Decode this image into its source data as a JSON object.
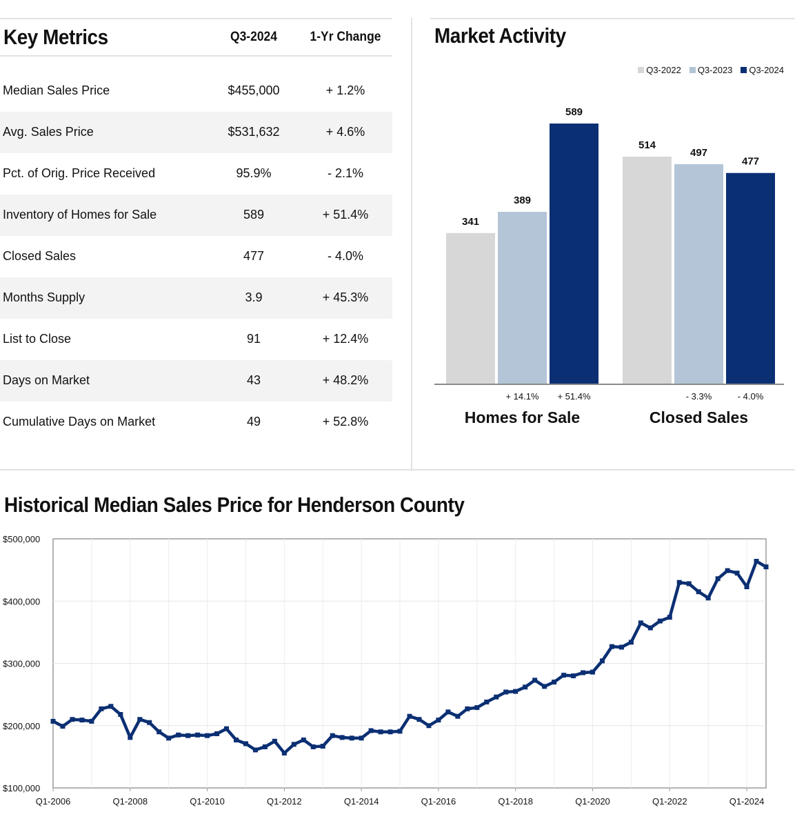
{
  "key_metrics": {
    "title": "Key Metrics",
    "col_period": "Q3-2024",
    "col_change": "1-Yr Change",
    "rows": [
      {
        "label": "Median Sales Price",
        "value": "$455,000",
        "change": "+ 1.2%"
      },
      {
        "label": "Avg. Sales Price",
        "value": "$531,632",
        "change": "+ 4.6%"
      },
      {
        "label": "Pct. of Orig. Price Received",
        "value": "95.9%",
        "change": "- 2.1%"
      },
      {
        "label": "Inventory of Homes for Sale",
        "value": "589",
        "change": "+ 51.4%"
      },
      {
        "label": "Closed Sales",
        "value": "477",
        "change": "- 4.0%"
      },
      {
        "label": "Months Supply",
        "value": "3.9",
        "change": "+ 45.3%"
      },
      {
        "label": "List to Close",
        "value": "91",
        "change": "+ 12.4%"
      },
      {
        "label": "Days on Market",
        "value": "43",
        "change": "+ 48.2%"
      },
      {
        "label": "Cumulative Days on Market",
        "value": "49",
        "change": "+ 52.8%"
      }
    ]
  },
  "market_activity": {
    "title": "Market Activity"
  },
  "historical": {
    "title": "Historical Median Sales Price for Henderson County"
  },
  "colors": {
    "q3_2022": "#d7d7d7",
    "q3_2023": "#b3c5d6",
    "q3_2024": "#0b2f73",
    "line": "#0b2f73"
  },
  "chart_data": [
    {
      "type": "bar",
      "categories": [
        "Homes for Sale",
        "Closed Sales"
      ],
      "series": [
        {
          "name": "Q3-2022",
          "values": [
            341,
            514
          ]
        },
        {
          "name": "Q3-2023",
          "values": [
            389,
            497
          ]
        },
        {
          "name": "Q3-2024",
          "values": [
            589,
            477
          ]
        }
      ],
      "change_labels": [
        [
          "",
          "+ 14.1%",
          "+ 51.4%"
        ],
        [
          "",
          "- 3.3%",
          "- 4.0%"
        ]
      ],
      "ylim": [
        0,
        650
      ],
      "legend": "top-right",
      "grid": false
    },
    {
      "type": "line",
      "title": "Historical Median Sales Price for Henderson County",
      "x_tick_labels": [
        "Q1-2006",
        "Q1-2008",
        "Q1-2010",
        "Q1-2012",
        "Q1-2014",
        "Q1-2016",
        "Q1-2018",
        "Q1-2020",
        "Q1-2022",
        "Q1-2024"
      ],
      "y_tick_labels": [
        "$100,000",
        "$200,000",
        "$300,000",
        "$400,000",
        "$500,000"
      ],
      "ylim": [
        100000,
        500000
      ],
      "x_start": "Q1-2006",
      "x_end": "Q3-2024",
      "grid": true,
      "values": [
        207000,
        199000,
        210000,
        209000,
        207000,
        227000,
        231000,
        218000,
        181000,
        210000,
        205000,
        190000,
        180000,
        185000,
        184000,
        185000,
        184000,
        187000,
        195000,
        177000,
        171000,
        161000,
        166000,
        175000,
        156000,
        170000,
        177000,
        166000,
        167000,
        184000,
        181000,
        180000,
        180000,
        192000,
        190000,
        190000,
        191000,
        215000,
        210000,
        200000,
        209000,
        222000,
        215000,
        227000,
        229000,
        238000,
        246000,
        254000,
        255000,
        262000,
        273000,
        263000,
        270000,
        281000,
        280000,
        285000,
        286000,
        304000,
        327000,
        326000,
        334000,
        365000,
        357000,
        368000,
        374000,
        430000,
        428000,
        415000,
        405000,
        436000,
        449000,
        445000,
        423000,
        464000,
        455000
      ]
    }
  ]
}
